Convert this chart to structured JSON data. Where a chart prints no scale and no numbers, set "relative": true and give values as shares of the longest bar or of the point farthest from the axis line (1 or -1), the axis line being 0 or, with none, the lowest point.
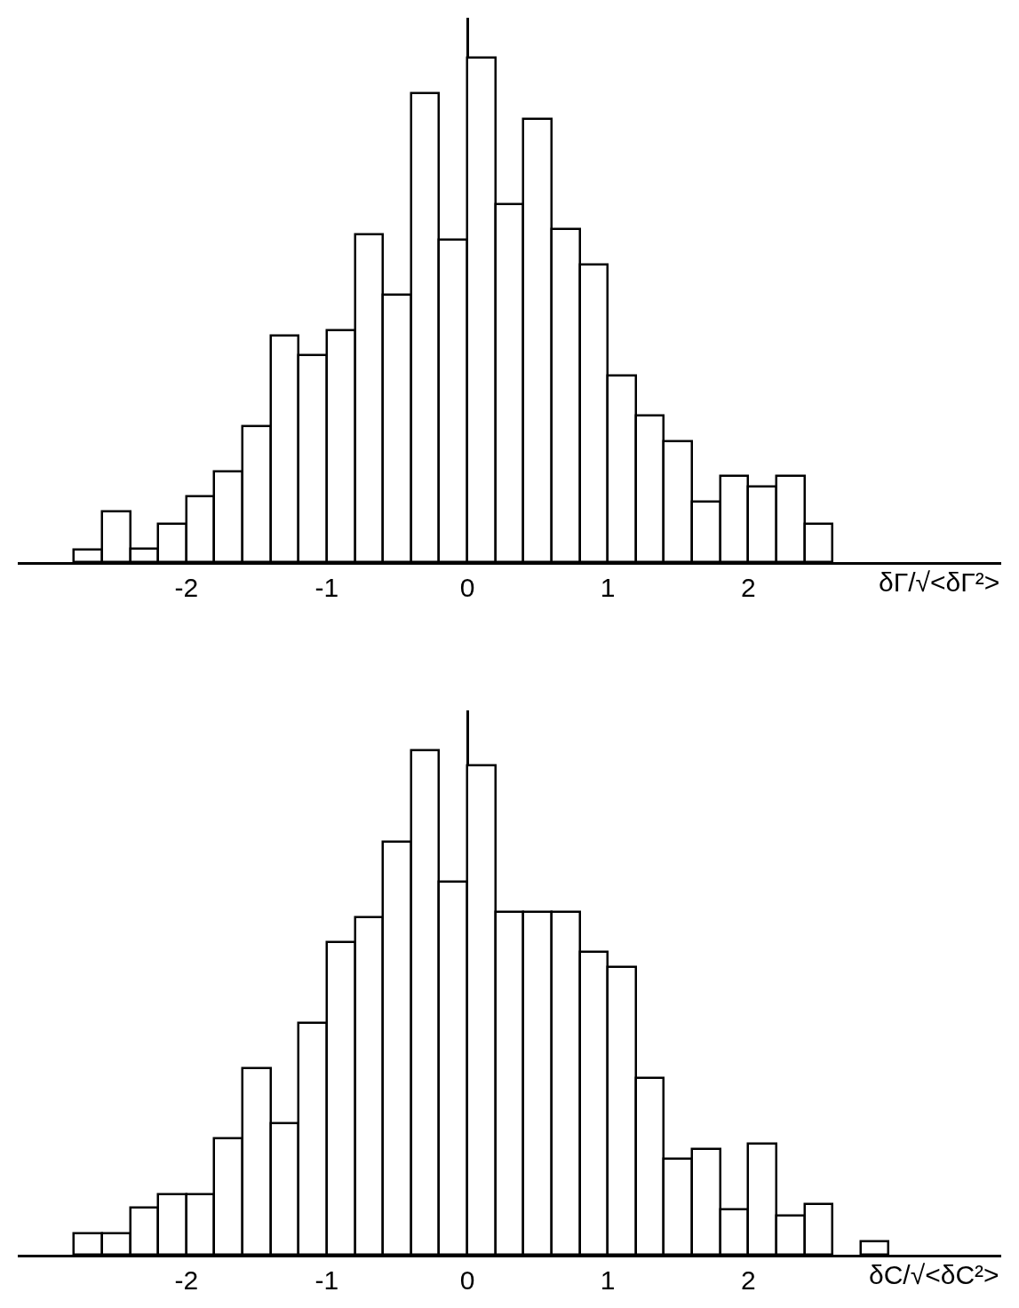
{
  "chart_data": [
    {
      "type": "bar",
      "relative": true,
      "xlabel": "δΓ/√<δΓ²>",
      "x": [
        -2.7,
        -2.5,
        -2.3,
        -2.1,
        -1.9,
        -1.7,
        -1.5,
        -1.3,
        -1.1,
        -0.9,
        -0.7,
        -0.5,
        -0.3,
        -0.1,
        0.1,
        0.3,
        0.5,
        0.7,
        0.9,
        1.1,
        1.3,
        1.5,
        1.7,
        1.9,
        2.1,
        2.3,
        2.5
      ],
      "values": [
        0.025,
        0.1,
        0.026,
        0.075,
        0.13,
        0.18,
        0.27,
        0.45,
        0.41,
        0.46,
        0.65,
        0.53,
        0.93,
        0.64,
        1,
        0.71,
        0.88,
        0.66,
        0.59,
        0.37,
        0.29,
        0.24,
        0.12,
        0.17,
        0.15,
        0.17,
        0.075
      ],
      "color": "#ffffff",
      "xlim": [
        -3.2,
        3.8
      ],
      "xticks": [
        -2,
        -1,
        0,
        1,
        2
      ]
    },
    {
      "type": "bar",
      "relative": true,
      "xlabel": "δC/√<δC²>",
      "x": [
        -2.7,
        -2.5,
        -2.3,
        -2.1,
        -1.9,
        -1.7,
        -1.5,
        -1.3,
        -1.1,
        -0.9,
        -0.7,
        -0.5,
        -0.3,
        -0.1,
        0.1,
        0.3,
        0.5,
        0.7,
        0.9,
        1.1,
        1.3,
        1.5,
        1.7,
        1.9,
        2.1,
        2.3,
        2.5,
        2.7,
        2.9
      ],
      "values": [
        0.043,
        0.043,
        0.094,
        0.12,
        0.12,
        0.23,
        0.37,
        0.26,
        0.46,
        0.62,
        0.67,
        0.82,
        1,
        0.74,
        0.97,
        0.68,
        0.68,
        0.68,
        0.6,
        0.57,
        0.35,
        0.19,
        0.21,
        0.09,
        0.22,
        0.077,
        0.1,
        null,
        0.027
      ],
      "color": "#ffffff",
      "xlim": [
        -3.2,
        3.8
      ],
      "xticks": [
        -2,
        -1,
        0,
        1,
        2
      ]
    }
  ]
}
